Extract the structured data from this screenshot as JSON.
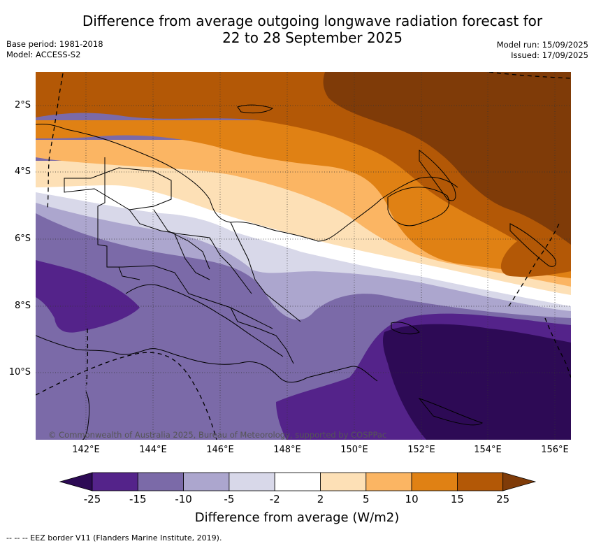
{
  "title": {
    "line1": "Difference from average outgoing longwave radiation forecast for",
    "line2": "22 to 28 September 2025"
  },
  "meta": {
    "base_period": "Base period: 1981-2018",
    "model": "Model: ACCESS-S2",
    "model_run": "Model run: 15/09/2025",
    "issued": "Issued: 17/09/2025"
  },
  "axes": {
    "y_ticks": [
      "2°S",
      "4°S",
      "6°S",
      "8°S",
      "10°S"
    ],
    "x_ticks": [
      "142°E",
      "144°E",
      "146°E",
      "148°E",
      "150°E",
      "152°E",
      "154°E",
      "156°E"
    ]
  },
  "credit": "© Commonwealth of Australia 2025, Bureau of Meteorology, supported by COSPPac",
  "colorbar": {
    "ticks": [
      "-25",
      "-15",
      "-10",
      "-5",
      "-2",
      "2",
      "5",
      "10",
      "15",
      "25"
    ],
    "label": "Difference from average (W/m2)",
    "colors": [
      "#2d0a55",
      "#54238a",
      "#7b6aa8",
      "#aca6ce",
      "#d8d8e9",
      "#ffffff",
      "#fde0b6",
      "#fbb563",
      "#e08114",
      "#b35806",
      "#7f3b08"
    ]
  },
  "footnote": "--  --  -- EEZ border V11 (Flanders Marine Institute, 2019)."
}
